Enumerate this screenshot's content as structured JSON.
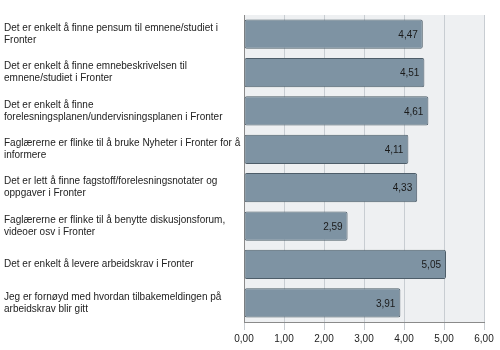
{
  "chart_data": {
    "type": "bar",
    "orientation": "horizontal",
    "categories": [
      "Det er enkelt å finne pensum til emnene/studiet i Fronter",
      "Det er enkelt å finne emnebeskrivelsen til emnene/studiet i Fronter",
      "Det er enkelt å finne forelesningsplanen/undervisningsplanen i Fronter",
      "Faglærerne er flinke til å bruke Nyheter i Fronter for å informere",
      "Det er lett å finne fagstoff/forelesningsnotater og oppgaver i Fronter",
      "Faglærerne er flinke til å benytte diskusjonsforum, videoer osv i Fronter",
      "Det er enkelt å levere arbeidskrav i Fronter",
      "Jeg er fornøyd med hvordan tilbakemeldingen på arbeidskrav blir gitt"
    ],
    "values": [
      4.47,
      4.51,
      4.61,
      4.11,
      4.33,
      2.59,
      5.05,
      3.91
    ],
    "value_labels": [
      "4,47",
      "4,51",
      "4,61",
      "4,11",
      "4,33",
      "2,59",
      "5,05",
      "3,91"
    ],
    "data_labels": true,
    "color": "#7e93a3",
    "xlim": [
      0,
      6
    ],
    "xticks": [
      {
        "value": 0,
        "label": "0,00"
      },
      {
        "value": 1,
        "label": "1,00"
      },
      {
        "value": 2,
        "label": "2,00"
      },
      {
        "value": 3,
        "label": "3,00"
      },
      {
        "value": 4,
        "label": "4,00"
      },
      {
        "value": 5,
        "label": "5,00"
      },
      {
        "value": 6,
        "label": "6,00"
      }
    ],
    "grid": true
  }
}
